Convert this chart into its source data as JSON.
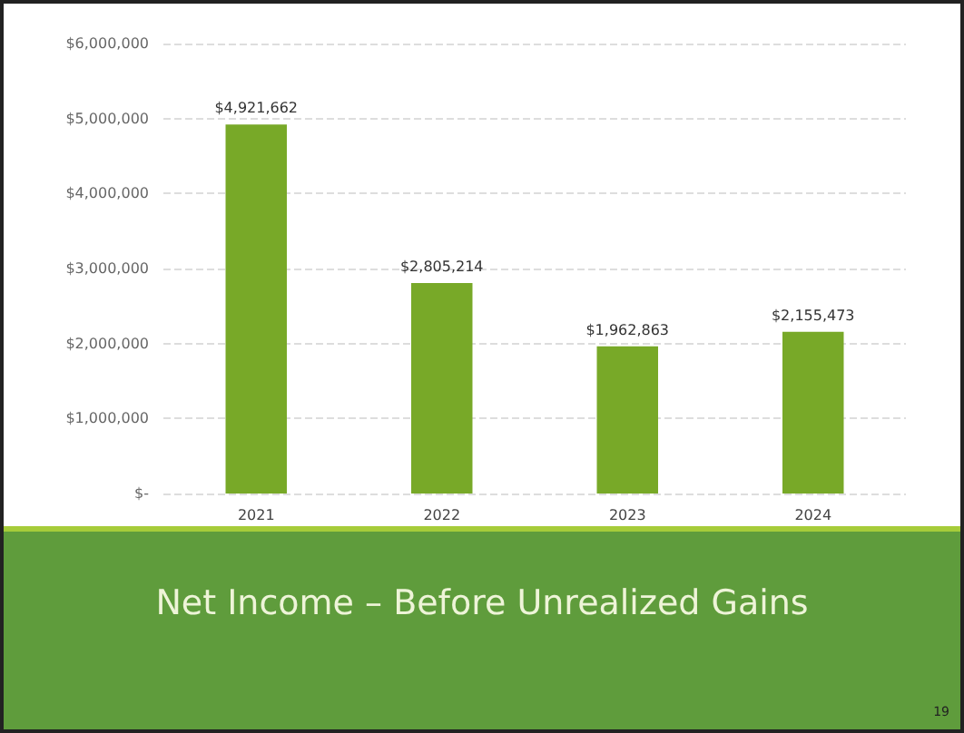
{
  "chart_data": {
    "type": "bar",
    "title": "Net Income – Before Unrealized Gains",
    "categories": [
      "2021",
      "2022",
      "2023",
      "2024"
    ],
    "values": [
      4921662,
      2805214,
      1962863,
      2155473
    ],
    "value_labels": [
      "$4,921,662",
      "$2,805,214",
      "$1,962,863",
      "$2,155,473"
    ],
    "color": "#78a928",
    "ylim": [
      0,
      6000000
    ],
    "yticks": [
      {
        "value": 0,
        "label": "$-"
      },
      {
        "value": 1000000,
        "label": "$1,000,000"
      },
      {
        "value": 2000000,
        "label": "$2,000,000"
      },
      {
        "value": 3000000,
        "label": "$3,000,000"
      },
      {
        "value": 4000000,
        "label": "$4,000,000"
      },
      {
        "value": 5000000,
        "label": "$5,000,000"
      },
      {
        "value": 6000000,
        "label": "$6,000,000"
      }
    ],
    "grid": "y",
    "annotations": [
      "19"
    ]
  }
}
